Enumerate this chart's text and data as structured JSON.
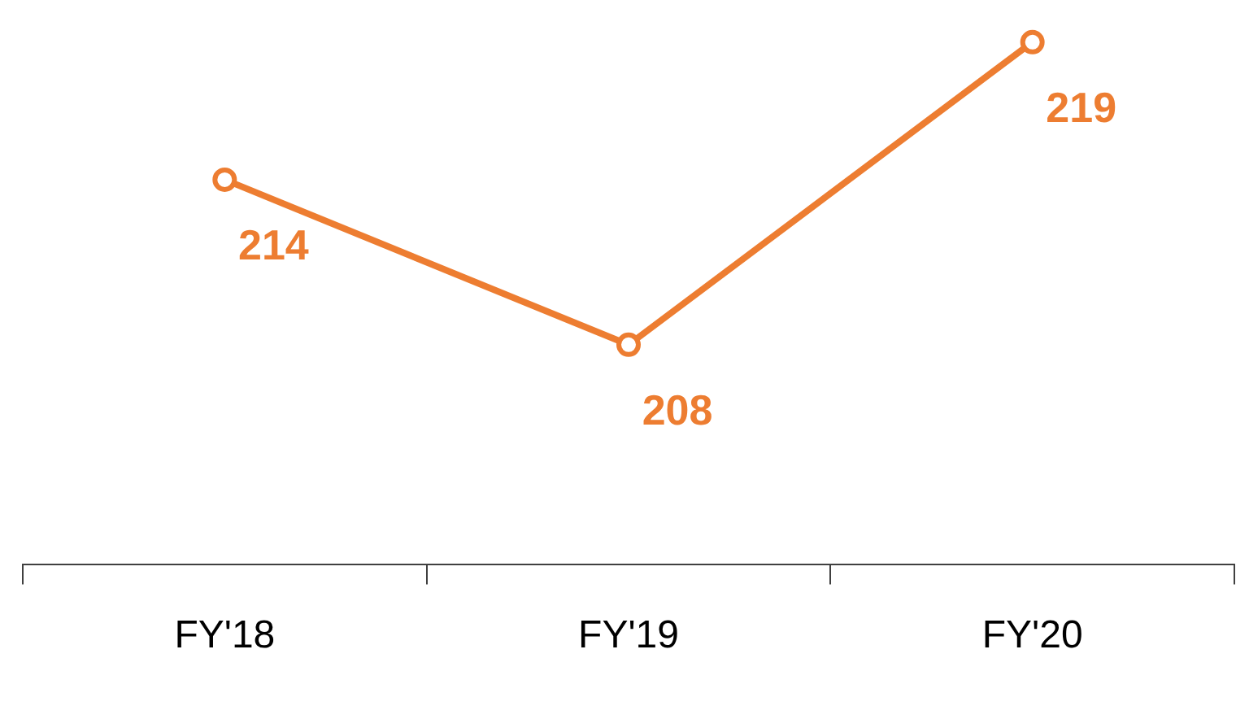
{
  "chart_data": {
    "type": "line",
    "categories": [
      "FY'18",
      "FY'19",
      "FY'20"
    ],
    "series": [
      {
        "color": "#ed7d31",
        "values": [
          214,
          208,
          219
        ]
      }
    ],
    "tick_labels": "x",
    "data_labels": true,
    "marker": "circle",
    "line_style": "solid",
    "grid": false,
    "legend": false
  }
}
